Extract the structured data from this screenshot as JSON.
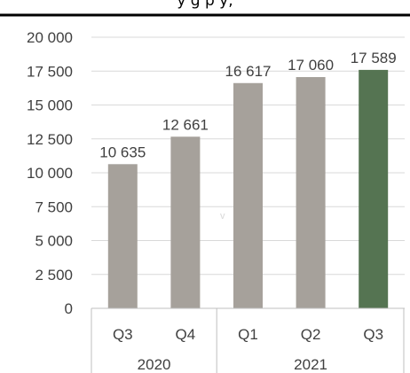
{
  "chart_data": {
    "type": "bar",
    "partial_title": "y                    g p        y,",
    "categories": [
      "Q3",
      "Q4",
      "Q1",
      "Q2",
      "Q3"
    ],
    "groups": [
      {
        "label": "2020",
        "count": 2
      },
      {
        "label": "2021",
        "count": 3
      }
    ],
    "values": [
      10635,
      12661,
      16617,
      17060,
      17589
    ],
    "data_labels": [
      "10 635",
      "12 661",
      "16 617",
      "17 060",
      "17 589"
    ],
    "bar_colors": [
      "#a6a19b",
      "#a6a19b",
      "#a6a19b",
      "#a6a19b",
      "#557452"
    ],
    "y_ticks": [
      "0",
      "2 500",
      "5 000",
      "7 500",
      "10 000",
      "12 500",
      "15 000",
      "17 500",
      "20 000"
    ],
    "ylim": [
      0,
      20000
    ],
    "grid": true,
    "stray_mark": "v"
  }
}
